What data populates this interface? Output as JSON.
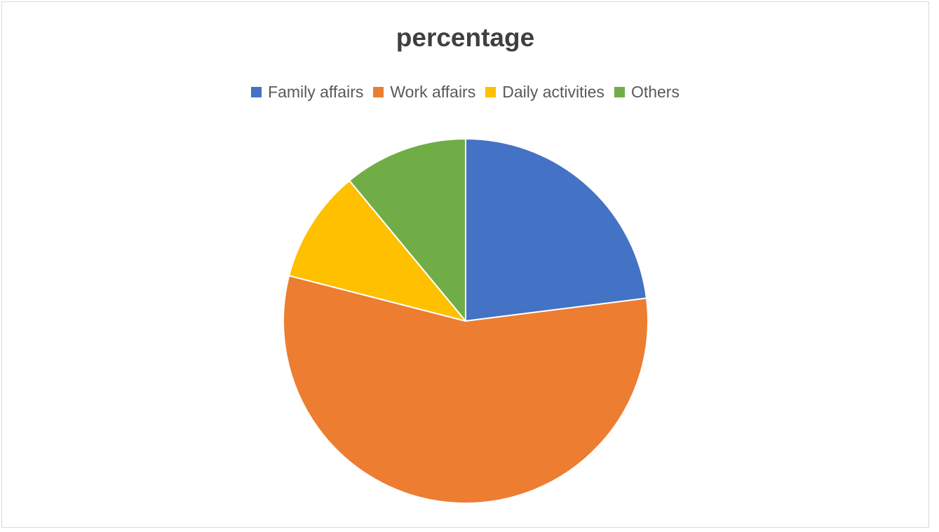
{
  "chart_data": {
    "type": "pie",
    "title": "percentage",
    "categories": [
      "Family affairs",
      "Work affairs",
      "Daily activities",
      "Others"
    ],
    "values": [
      23,
      56,
      10,
      11
    ],
    "colors": [
      "#4472c4",
      "#ed7d31",
      "#ffc000",
      "#70ad47"
    ],
    "legend_position": "top",
    "start_angle_deg": 0,
    "direction": "clockwise"
  }
}
